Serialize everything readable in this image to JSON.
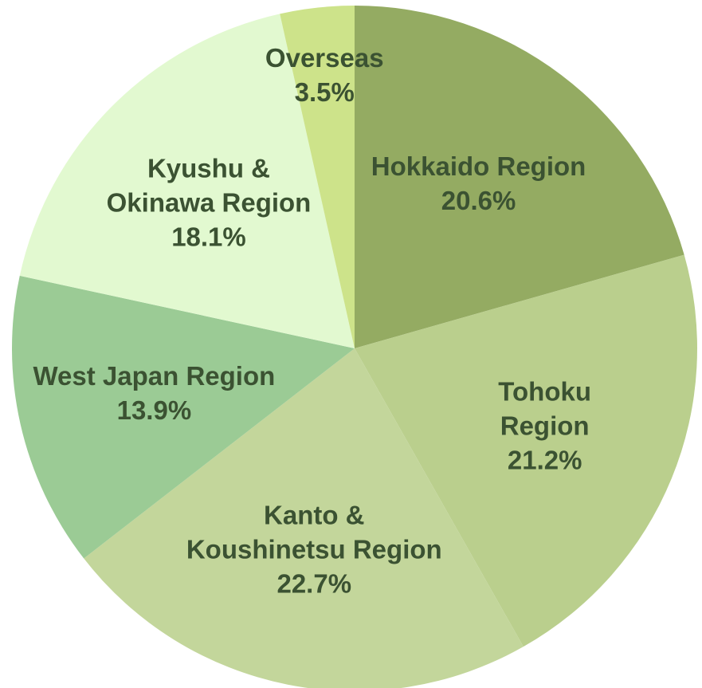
{
  "chart_data": {
    "type": "pie",
    "categories": [
      "Hokkaido Region",
      "Tohoku Region",
      "Kanto &\nKoushinetsu Region",
      "West Japan Region",
      "Kyushu &\nOkinawa Region",
      "Overseas"
    ],
    "values": [
      20.6,
      21.2,
      22.7,
      13.9,
      18.1,
      3.5
    ],
    "value_labels": [
      "20.6%",
      "21.2%",
      "22.7%",
      "13.9%",
      "18.1%",
      "3.5%"
    ],
    "colors": [
      "#94ab62",
      "#bacf8d",
      "#c3d69b",
      "#9bcb95",
      "#e2f9d0",
      "#cde38a"
    ]
  }
}
